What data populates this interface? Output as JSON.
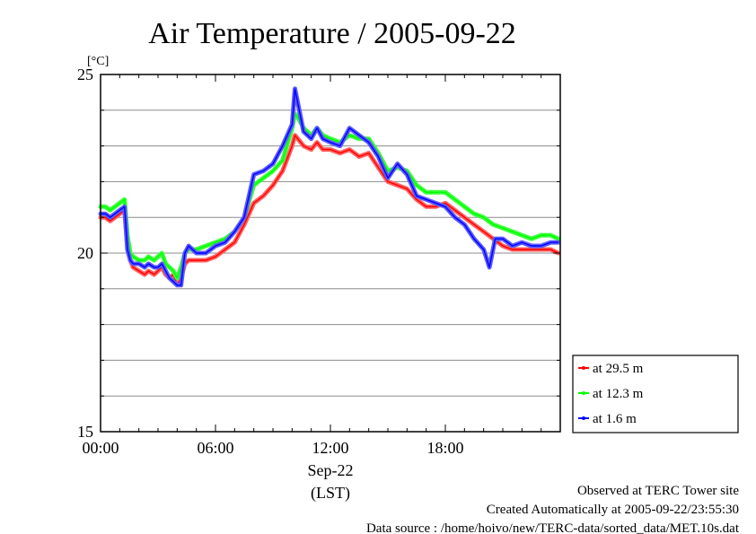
{
  "chart_data": {
    "type": "line",
    "title": "Air Temperature / 2005-09-22",
    "ylabel": "[°C]",
    "xlabel": "(LST)",
    "xlim": [
      0,
      24
    ],
    "ylim": [
      15,
      25
    ],
    "grid": true,
    "x_ticks": [
      {
        "value": 0,
        "label": "00:00"
      },
      {
        "value": 6,
        "label": "06:00"
      },
      {
        "value": 12,
        "label": "12:00"
      },
      {
        "value": 18,
        "label": "18:00"
      }
    ],
    "x_date_label": "Sep-22",
    "y_ticks": [
      {
        "value": 15,
        "label": "15"
      },
      {
        "value": 20,
        "label": "20"
      },
      {
        "value": 25,
        "label": "25"
      }
    ],
    "legend_position": "right-bottom",
    "series": [
      {
        "name": "at 29.5 m",
        "color": "#ff0000",
        "x": [
          0,
          0.25,
          0.5,
          0.75,
          1.0,
          1.25,
          1.4,
          1.55,
          1.7,
          2.0,
          2.3,
          2.5,
          2.8,
          3.0,
          3.2,
          3.4,
          3.6,
          3.8,
          4.0,
          4.2,
          4.4,
          4.6,
          5.0,
          5.5,
          6.0,
          6.5,
          7.0,
          7.5,
          8.0,
          8.5,
          9.0,
          9.5,
          10.0,
          10.15,
          10.3,
          10.6,
          11.0,
          11.3,
          11.6,
          12.0,
          12.5,
          13.0,
          13.5,
          14.0,
          14.5,
          15.0,
          15.5,
          16.0,
          16.5,
          17.0,
          17.5,
          18.0,
          18.5,
          19.0,
          19.5,
          20.0,
          20.5,
          21.0,
          21.5,
          22.0,
          22.5,
          23.0,
          23.5,
          23.9
        ],
        "values": [
          21.0,
          21.0,
          20.9,
          21.0,
          21.1,
          21.2,
          20.2,
          19.8,
          19.6,
          19.5,
          19.4,
          19.5,
          19.4,
          19.5,
          19.6,
          19.4,
          19.3,
          19.4,
          19.1,
          19.3,
          19.7,
          19.8,
          19.8,
          19.8,
          19.9,
          20.1,
          20.3,
          20.8,
          21.4,
          21.6,
          21.9,
          22.3,
          23.0,
          23.3,
          23.2,
          23.0,
          22.9,
          23.1,
          22.9,
          22.9,
          22.8,
          22.9,
          22.7,
          22.8,
          22.4,
          22.0,
          21.9,
          21.8,
          21.5,
          21.3,
          21.3,
          21.4,
          21.2,
          21.0,
          20.8,
          20.6,
          20.4,
          20.2,
          20.1,
          20.1,
          20.1,
          20.1,
          20.1,
          20.0
        ]
      },
      {
        "name": "at 12.3 m",
        "color": "#00ff00",
        "x": [
          0,
          0.25,
          0.5,
          0.75,
          1.0,
          1.25,
          1.4,
          1.55,
          1.7,
          2.0,
          2.3,
          2.5,
          2.8,
          3.0,
          3.2,
          3.4,
          3.6,
          3.8,
          4.0,
          4.2,
          4.4,
          4.6,
          5.0,
          5.5,
          6.0,
          6.5,
          7.0,
          7.5,
          8.0,
          8.5,
          9.0,
          9.5,
          10.0,
          10.15,
          10.3,
          10.6,
          11.0,
          11.3,
          11.6,
          12.0,
          12.5,
          13.0,
          13.5,
          14.0,
          14.5,
          15.0,
          15.5,
          16.0,
          16.5,
          17.0,
          17.5,
          18.0,
          18.5,
          19.0,
          19.5,
          20.0,
          20.5,
          21.0,
          21.5,
          22.0,
          22.5,
          23.0,
          23.5,
          23.9
        ],
        "values": [
          21.3,
          21.3,
          21.2,
          21.3,
          21.4,
          21.5,
          20.5,
          20.0,
          19.9,
          19.8,
          19.8,
          19.9,
          19.8,
          19.9,
          20.0,
          19.7,
          19.6,
          19.5,
          19.3,
          19.6,
          20.0,
          20.1,
          20.1,
          20.2,
          20.3,
          20.4,
          20.6,
          21.0,
          21.9,
          22.1,
          22.3,
          22.6,
          23.5,
          23.9,
          23.8,
          23.5,
          23.3,
          23.5,
          23.3,
          23.2,
          23.1,
          23.3,
          23.2,
          23.2,
          22.8,
          22.3,
          22.4,
          22.3,
          21.9,
          21.7,
          21.7,
          21.7,
          21.5,
          21.3,
          21.1,
          21.0,
          20.8,
          20.7,
          20.6,
          20.5,
          20.4,
          20.5,
          20.5,
          20.4
        ]
      },
      {
        "name": "at 1.6 m",
        "color": "#0000ff",
        "x": [
          0,
          0.25,
          0.5,
          0.75,
          1.0,
          1.25,
          1.4,
          1.55,
          1.7,
          2.0,
          2.3,
          2.5,
          2.8,
          3.0,
          3.2,
          3.4,
          3.6,
          3.8,
          4.0,
          4.2,
          4.4,
          4.6,
          5.0,
          5.5,
          6.0,
          6.5,
          7.0,
          7.5,
          8.0,
          8.5,
          9.0,
          9.5,
          10.0,
          10.15,
          10.3,
          10.6,
          11.0,
          11.3,
          11.6,
          12.0,
          12.5,
          13.0,
          13.5,
          14.0,
          14.5,
          15.0,
          15.5,
          16.0,
          16.5,
          17.0,
          17.5,
          18.0,
          18.5,
          19.0,
          19.5,
          20.0,
          20.3,
          20.6,
          21.0,
          21.5,
          22.0,
          22.5,
          23.0,
          23.5,
          23.9
        ],
        "values": [
          21.1,
          21.1,
          21.0,
          21.1,
          21.2,
          21.3,
          20.1,
          19.8,
          19.7,
          19.7,
          19.6,
          19.7,
          19.6,
          19.6,
          19.7,
          19.5,
          19.3,
          19.2,
          19.1,
          19.1,
          20.0,
          20.2,
          20.0,
          20.0,
          20.2,
          20.3,
          20.6,
          21.0,
          22.2,
          22.3,
          22.5,
          23.0,
          23.6,
          24.6,
          24.2,
          23.4,
          23.2,
          23.5,
          23.2,
          23.1,
          23.0,
          23.5,
          23.3,
          23.1,
          22.7,
          22.1,
          22.5,
          22.2,
          21.6,
          21.5,
          21.4,
          21.3,
          21.0,
          20.8,
          20.4,
          20.1,
          19.6,
          20.4,
          20.4,
          20.2,
          20.3,
          20.2,
          20.2,
          20.3,
          20.3
        ]
      }
    ]
  },
  "footer": {
    "site": "Observed at TERC Tower site",
    "created": "Created Automatically at 2005-09-22/23:55:30",
    "source": "Data source : /home/hoivo/new/TERC-data/sorted_data/MET.10s.dat"
  }
}
